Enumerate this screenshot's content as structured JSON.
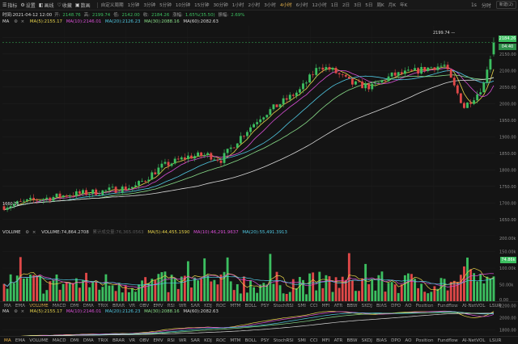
{
  "toolbar": {
    "left": [
      {
        "icon": "☰",
        "label": "指标"
      },
      {
        "icon": "⚙",
        "label": "设置"
      },
      {
        "icon": "◧",
        "label": "画线"
      },
      {
        "icon": "♡",
        "label": "收藏"
      },
      {
        "icon": "▣",
        "label": "数画"
      }
    ],
    "custom_period": "自定义周期",
    "timeframes": [
      "1分钟",
      "3分钟",
      "5分钟",
      "10分钟",
      "15分钟",
      "30分钟",
      "1小时",
      "2小时",
      "3小时",
      "4小时",
      "6小时",
      "12小时",
      "1日",
      "2日",
      "3日",
      "5日",
      "周K",
      "月K",
      "年K"
    ],
    "active_timeframe": "4小时",
    "right": [
      "1s",
      "分时"
    ],
    "user": "新建(2)"
  },
  "ohlc": {
    "time_label": "时间:2021-04-12 12:00",
    "open_label": "开:",
    "open": "2148.76",
    "high_label": "高:",
    "high": "2199.74",
    "low_label": "低:",
    "low": "2142.00",
    "close_label": "收:",
    "close": "2184.26",
    "change_label": "涨幅:",
    "change": "1.65%(35.50)",
    "amp_label": "振幅:",
    "amp": "2.69%"
  },
  "ma_line": {
    "name": "MA",
    "ma5": "MA(5):2155.17",
    "ma10": "MA(10):2146.01",
    "ma20": "MA(20):2126.23",
    "ma30": "MA(30):2088.16",
    "ma60": "MA(60):2082.63"
  },
  "price_axis": [
    "2200.00",
    "2150.00",
    "2100.00",
    "2050.00",
    "2000.00",
    "1950.00",
    "1900.00",
    "1850.00",
    "1800.00",
    "1750.00",
    "1700.00",
    "1650.00"
  ],
  "price_tag": "2184.26",
  "countdown_tag": "04:40",
  "high_marker": "2199.74",
  "low_marker": "1660.31",
  "volume_line": {
    "name": "VOLUME",
    "vol": "VOLUME:74,864.2708",
    "vol_faded": "累计成交量:76,365.0563",
    "ma5": "MA(5):44,455.1590",
    "ma10": "MA(10):46,291.9637",
    "ma20": "MA(20):55,491.3913"
  },
  "volume_axis": [
    "200.00k",
    "150.00k",
    "100.00k",
    "50.00k",
    "0.00"
  ],
  "volume_tag": "74.86k",
  "indicator_tabs": [
    "MA",
    "EMA",
    "VOLUME",
    "MACD",
    "DMI",
    "DMA",
    "TRIX",
    "BRAR",
    "VR",
    "OBV",
    "EMV",
    "RSI",
    "WR",
    "SAR",
    "KDJ",
    "ROC",
    "MTM",
    "BOLL",
    "PSY",
    "StochRSI",
    "SMI",
    "CCI",
    "MFI",
    "ATR",
    "BBW",
    "SKDJ",
    "BIAS",
    "DPO",
    "AO",
    "Position",
    "Fundflow",
    "AI-NetVOL",
    "LSUR"
  ],
  "active_top_tab": "VOLUME",
  "active_bottom_tab": "MA",
  "sub_ma_line": {
    "name": "MA",
    "ma5": "MA(5):2155.17",
    "ma10": "MA(10):2146.01",
    "ma20": "MA(20):2126.23",
    "ma30": "MA(30):2088.16",
    "ma60": "MA(60):2082.63"
  },
  "sub_axis": [
    "2200.00",
    "2000.00",
    "1800.00"
  ],
  "colors": {
    "up": "#3cbf60",
    "down": "#e04848",
    "ma5": "#e7d34b",
    "ma10": "#d94fd6",
    "ma20": "#4fc6e0",
    "ma30": "#8adf8a",
    "ma60": "#d8d8d8",
    "accent": "#e6b24a"
  },
  "chart_data": {
    "type": "candlestick",
    "x": [
      "2021-04-12 12:00"
    ],
    "ohlc": [
      [
        2148.76,
        2199.74,
        2142.0,
        2184.26
      ]
    ],
    "ylim": [
      1625,
      2235
    ],
    "moving_averages": {
      "MA5": 2155.17,
      "MA10": 2146.01,
      "MA20": 2126.23,
      "MA30": 2088.16,
      "MA60": 2082.63
    },
    "volume": [
      74864.2708
    ],
    "volume_ylim": [
      0,
      200000
    ],
    "volume_ma": {
      "MA5": 44455.159,
      "MA10": 46291.9637,
      "MA20": 55491.3913
    }
  }
}
